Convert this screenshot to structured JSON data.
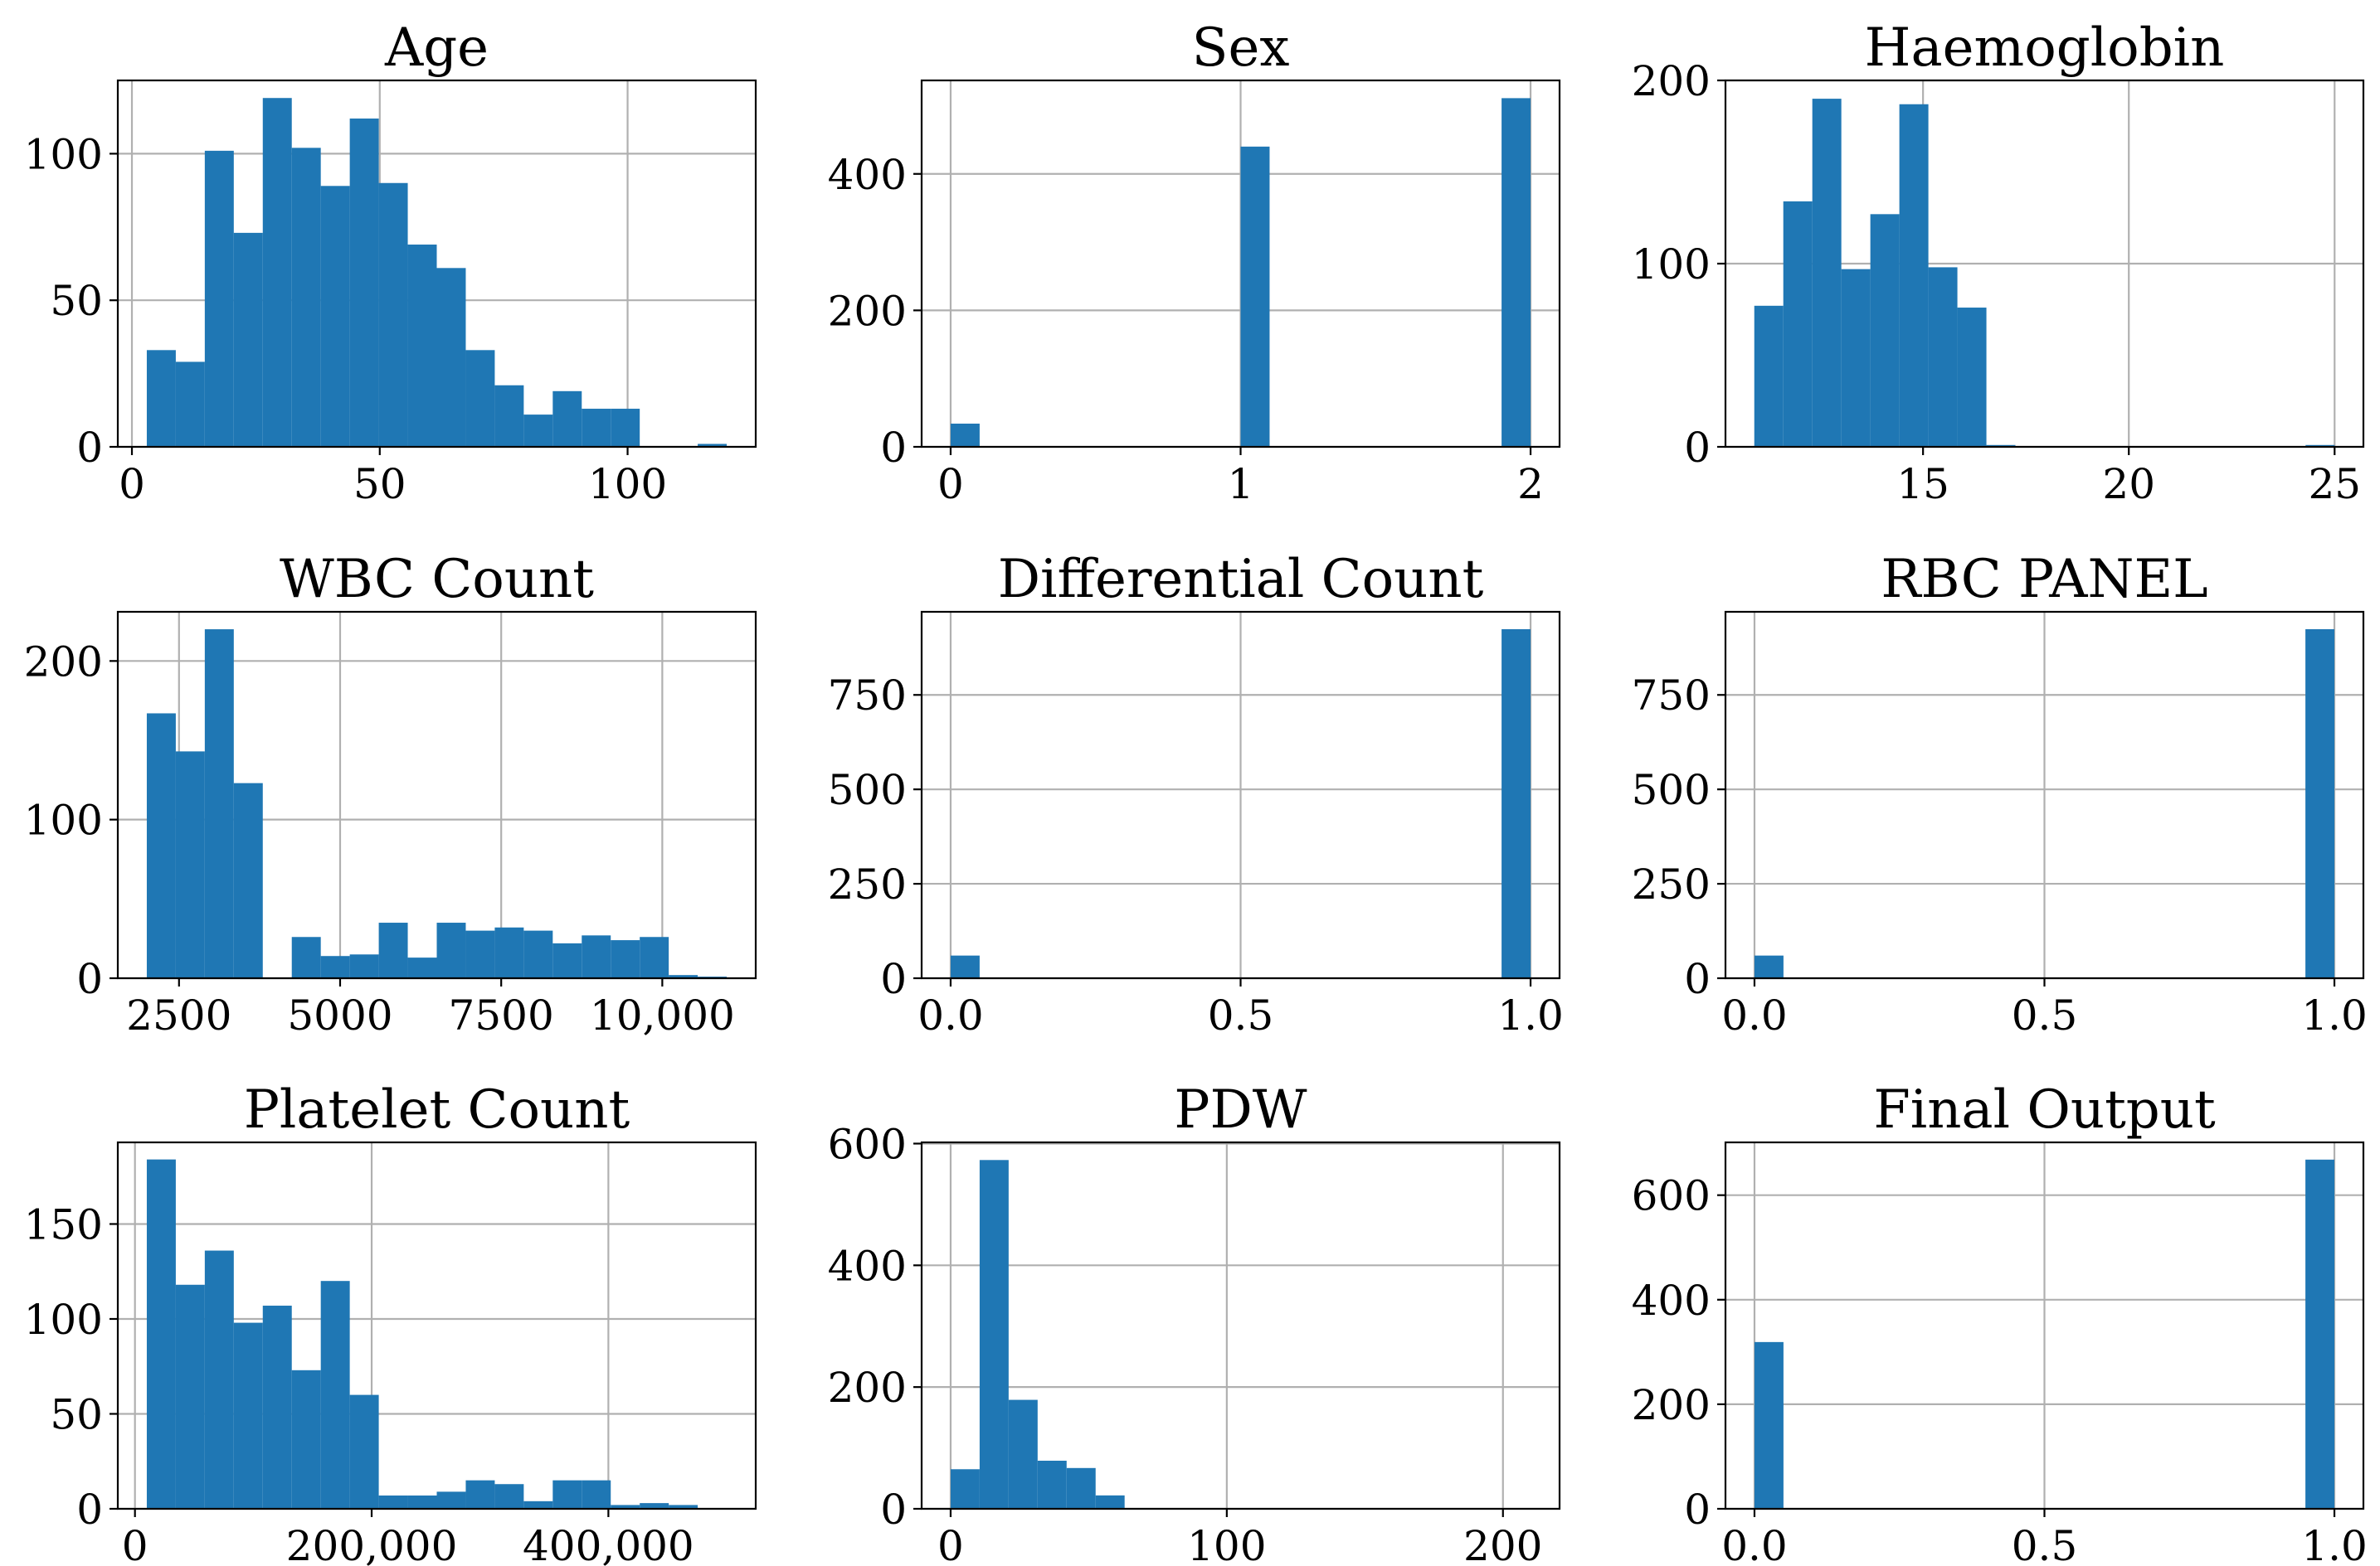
{
  "figure": {
    "bar_color": "#1f77b4",
    "grid_color": "#b0b0b0",
    "axes_color": "#000000"
  },
  "chart_data": [
    {
      "type": "bar",
      "title": "Age",
      "bins": {
        "start": 3,
        "end": 120,
        "count": 20
      },
      "values": [
        33,
        29,
        101,
        73,
        119,
        102,
        89,
        112,
        90,
        69,
        61,
        33,
        21,
        11,
        19,
        13,
        13,
        0,
        0,
        1
      ],
      "xlim": [
        -2.85,
        125.85
      ],
      "ylim": [
        0,
        125
      ],
      "xticks": [
        {
          "v": 0,
          "label": "0"
        },
        {
          "v": 50,
          "label": "50"
        },
        {
          "v": 100,
          "label": "100"
        }
      ],
      "yticks": [
        {
          "v": 0,
          "label": "0"
        },
        {
          "v": 50,
          "label": "50"
        },
        {
          "v": 100,
          "label": "100"
        }
      ],
      "grid": true
    },
    {
      "type": "bar",
      "title": "Sex",
      "bins": {
        "start": 0,
        "end": 2,
        "count": 20
      },
      "values": [
        34,
        0,
        0,
        0,
        0,
        0,
        0,
        0,
        0,
        0,
        440,
        0,
        0,
        0,
        0,
        0,
        0,
        0,
        0,
        511
      ],
      "xlim": [
        -0.1,
        2.1
      ],
      "ylim": [
        0,
        537
      ],
      "xticks": [
        {
          "v": 0,
          "label": "0"
        },
        {
          "v": 1,
          "label": "1"
        },
        {
          "v": 2,
          "label": "2"
        }
      ],
      "yticks": [
        {
          "v": 0,
          "label": "0"
        },
        {
          "v": 200,
          "label": "200"
        },
        {
          "v": 400,
          "label": "400"
        }
      ],
      "grid": true
    },
    {
      "type": "bar",
      "title": "Haemoglobin",
      "bins": {
        "start": 10.9,
        "end": 25,
        "count": 20
      },
      "values": [
        77,
        134,
        190,
        97,
        127,
        187,
        98,
        76,
        1,
        0,
        0,
        0,
        0,
        0,
        0,
        0,
        0,
        0,
        0,
        1
      ],
      "xlim": [
        10.2,
        25.7
      ],
      "ylim": [
        0,
        200
      ],
      "xticks": [
        {
          "v": 15,
          "label": "15"
        },
        {
          "v": 20,
          "label": "20"
        },
        {
          "v": 25,
          "label": "25"
        }
      ],
      "yticks": [
        {
          "v": 0,
          "label": "0"
        },
        {
          "v": 100,
          "label": "100"
        },
        {
          "v": 200,
          "label": "200"
        }
      ],
      "grid": true
    },
    {
      "type": "bar",
      "title": "WBC Count",
      "bins": {
        "start": 2000,
        "end": 11000,
        "count": 20
      },
      "values": [
        167,
        143,
        220,
        123,
        0,
        26,
        14,
        15,
        35,
        13,
        35,
        30,
        32,
        30,
        22,
        27,
        24,
        26,
        2,
        1
      ],
      "xlim": [
        1550,
        11450
      ],
      "ylim": [
        0,
        231
      ],
      "xticks": [
        {
          "v": 2500,
          "label": "2500"
        },
        {
          "v": 5000,
          "label": "5000"
        },
        {
          "v": 7500,
          "label": "7500"
        },
        {
          "v": 10000,
          "label": "10,000"
        }
      ],
      "yticks": [
        {
          "v": 0,
          "label": "0"
        },
        {
          "v": 100,
          "label": "100"
        },
        {
          "v": 200,
          "label": "200"
        }
      ],
      "grid": true
    },
    {
      "type": "bar",
      "title": "Differential Count",
      "bins": {
        "start": 0,
        "end": 1,
        "count": 20
      },
      "values": [
        60,
        0,
        0,
        0,
        0,
        0,
        0,
        0,
        0,
        0,
        0,
        0,
        0,
        0,
        0,
        0,
        0,
        0,
        0,
        924
      ],
      "xlim": [
        -0.05,
        1.05
      ],
      "ylim": [
        0,
        970
      ],
      "xticks": [
        {
          "v": 0,
          "label": "0.0"
        },
        {
          "v": 0.5,
          "label": "0.5"
        },
        {
          "v": 1,
          "label": "1.0"
        }
      ],
      "yticks": [
        {
          "v": 0,
          "label": "0"
        },
        {
          "v": 250,
          "label": "250"
        },
        {
          "v": 500,
          "label": "500"
        },
        {
          "v": 750,
          "label": "750"
        }
      ],
      "grid": true
    },
    {
      "type": "bar",
      "title": "RBC PANEL",
      "bins": {
        "start": 0,
        "end": 1,
        "count": 20
      },
      "values": [
        60,
        0,
        0,
        0,
        0,
        0,
        0,
        0,
        0,
        0,
        0,
        0,
        0,
        0,
        0,
        0,
        0,
        0,
        0,
        924
      ],
      "xlim": [
        -0.05,
        1.05
      ],
      "ylim": [
        0,
        970
      ],
      "xticks": [
        {
          "v": 0,
          "label": "0.0"
        },
        {
          "v": 0.5,
          "label": "0.5"
        },
        {
          "v": 1,
          "label": "1.0"
        }
      ],
      "yticks": [
        {
          "v": 0,
          "label": "0"
        },
        {
          "v": 250,
          "label": "250"
        },
        {
          "v": 500,
          "label": "500"
        },
        {
          "v": 750,
          "label": "750"
        }
      ],
      "grid": true
    },
    {
      "type": "bar",
      "title": "Platelet Count",
      "bins": {
        "start": 10000,
        "end": 500000,
        "count": 20
      },
      "values": [
        184,
        118,
        136,
        98,
        107,
        73,
        120,
        60,
        7,
        7,
        9,
        15,
        13,
        4,
        15,
        15,
        2,
        3,
        2,
        0
      ],
      "xlim": [
        -14500,
        524500
      ],
      "ylim": [
        0,
        193
      ],
      "xticks": [
        {
          "v": 0,
          "label": "0"
        },
        {
          "v": 200000,
          "label": "200,000"
        },
        {
          "v": 400000,
          "label": "400,000"
        }
      ],
      "yticks": [
        {
          "v": 0,
          "label": "0"
        },
        {
          "v": 50,
          "label": "50"
        },
        {
          "v": 100,
          "label": "100"
        },
        {
          "v": 150,
          "label": "150"
        }
      ],
      "grid": true
    },
    {
      "type": "bar",
      "title": "PDW",
      "bins": {
        "start": 0,
        "end": 210,
        "count": 20
      },
      "values": [
        65,
        573,
        179,
        79,
        67,
        22,
        0,
        0,
        0,
        0,
        0,
        0,
        0,
        0,
        0,
        0,
        0,
        0,
        0,
        0
      ],
      "xlim": [
        -10.5,
        220.5
      ],
      "ylim": [
        0,
        602
      ],
      "xticks": [
        {
          "v": 0,
          "label": "0"
        },
        {
          "v": 100,
          "label": "100"
        },
        {
          "v": 200,
          "label": "200"
        }
      ],
      "yticks": [
        {
          "v": 0,
          "label": "0"
        },
        {
          "v": 200,
          "label": "200"
        },
        {
          "v": 400,
          "label": "400"
        },
        {
          "v": 600,
          "label": "600"
        }
      ],
      "grid": true
    },
    {
      "type": "bar",
      "title": "Final Output",
      "bins": {
        "start": 0,
        "end": 1,
        "count": 20
      },
      "values": [
        319,
        0,
        0,
        0,
        0,
        0,
        0,
        0,
        0,
        0,
        0,
        0,
        0,
        0,
        0,
        0,
        0,
        0,
        0,
        668
      ],
      "xlim": [
        -0.05,
        1.05
      ],
      "ylim": [
        0,
        701
      ],
      "xticks": [
        {
          "v": 0,
          "label": "0.0"
        },
        {
          "v": 0.5,
          "label": "0.5"
        },
        {
          "v": 1,
          "label": "1.0"
        }
      ],
      "yticks": [
        {
          "v": 0,
          "label": "0"
        },
        {
          "v": 200,
          "label": "200"
        },
        {
          "v": 400,
          "label": "400"
        },
        {
          "v": 600,
          "label": "600"
        }
      ],
      "grid": true
    }
  ]
}
